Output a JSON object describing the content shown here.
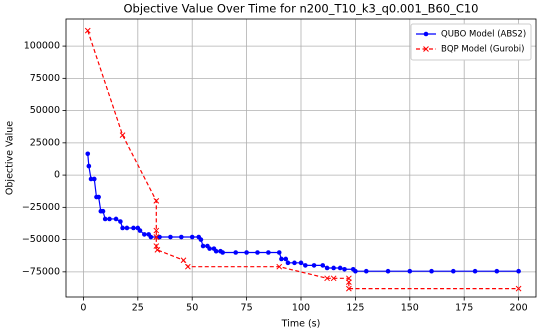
{
  "chart_data": {
    "type": "line",
    "title": "Objective Value Over Time for n200_T10_k3_q0.001_B60_C10",
    "x_label": "Time (s)",
    "y_label": "Objective Value",
    "xlim": [
      -8,
      208
    ],
    "xticks": [
      0,
      25,
      50,
      75,
      100,
      125,
      150,
      175,
      200
    ],
    "ylim": [
      -94500,
      121000
    ],
    "yticks": [
      {
        "value": -75000,
        "label": "−75000"
      },
      {
        "value": -50000,
        "label": "−50000"
      },
      {
        "value": -25000,
        "label": "−25000"
      },
      0,
      25000,
      50000,
      75000,
      100000
    ],
    "grid": true,
    "legend": "upper right",
    "series": [
      {
        "name": "QUBO Model (ABS2)",
        "color": "#0000ff",
        "marker": "o",
        "dashed": false,
        "x": [
          2,
          2.5,
          3.5,
          5,
          6,
          7,
          8,
          9,
          10,
          12,
          15,
          17,
          18,
          20,
          23,
          25,
          26,
          28,
          30,
          31,
          35,
          40,
          45,
          50,
          53,
          54,
          55,
          57,
          58,
          60,
          61,
          63,
          64,
          70,
          75,
          80,
          85,
          90,
          91,
          93,
          94,
          97,
          100,
          102,
          106,
          110,
          112,
          115,
          118,
          120,
          124,
          125,
          130,
          140,
          150,
          160,
          170,
          180,
          190,
          200
        ],
        "values": [
          16500,
          7000,
          -3000,
          -3000,
          -17000,
          -17000,
          -28000,
          -28000,
          -34000,
          -34000,
          -34000,
          -36000,
          -41000,
          -41000,
          -41000,
          -41000,
          -43000,
          -46000,
          -46000,
          -48000,
          -48000,
          -48000,
          -48000,
          -48000,
          -48000,
          -50000,
          -55000,
          -55000,
          -57000,
          -57000,
          -59000,
          -59000,
          -60000,
          -60000,
          -60000,
          -60000,
          -60000,
          -60000,
          -65000,
          -65000,
          -68000,
          -68000,
          -68000,
          -70000,
          -70000,
          -70000,
          -72000,
          -72000,
          -72000,
          -73000,
          -73000,
          -74500,
          -74500,
          -74500,
          -74500,
          -74500,
          -74500,
          -74500,
          -74500,
          -74500
        ]
      },
      {
        "name": "BQP Model (Gurobi)",
        "color": "#ff0000",
        "marker": "x",
        "dashed": true,
        "x": [
          2,
          18,
          33.5,
          33.5,
          33.5,
          33.5,
          34,
          46,
          48,
          90,
          112,
          115,
          122,
          122,
          122,
          200
        ],
        "values": [
          112000,
          31000,
          -20000,
          -43000,
          -48000,
          -55000,
          -58000,
          -66000,
          -71000,
          -71000,
          -80000,
          -80000,
          -80000,
          -83000,
          -88000,
          -88000
        ]
      }
    ]
  }
}
